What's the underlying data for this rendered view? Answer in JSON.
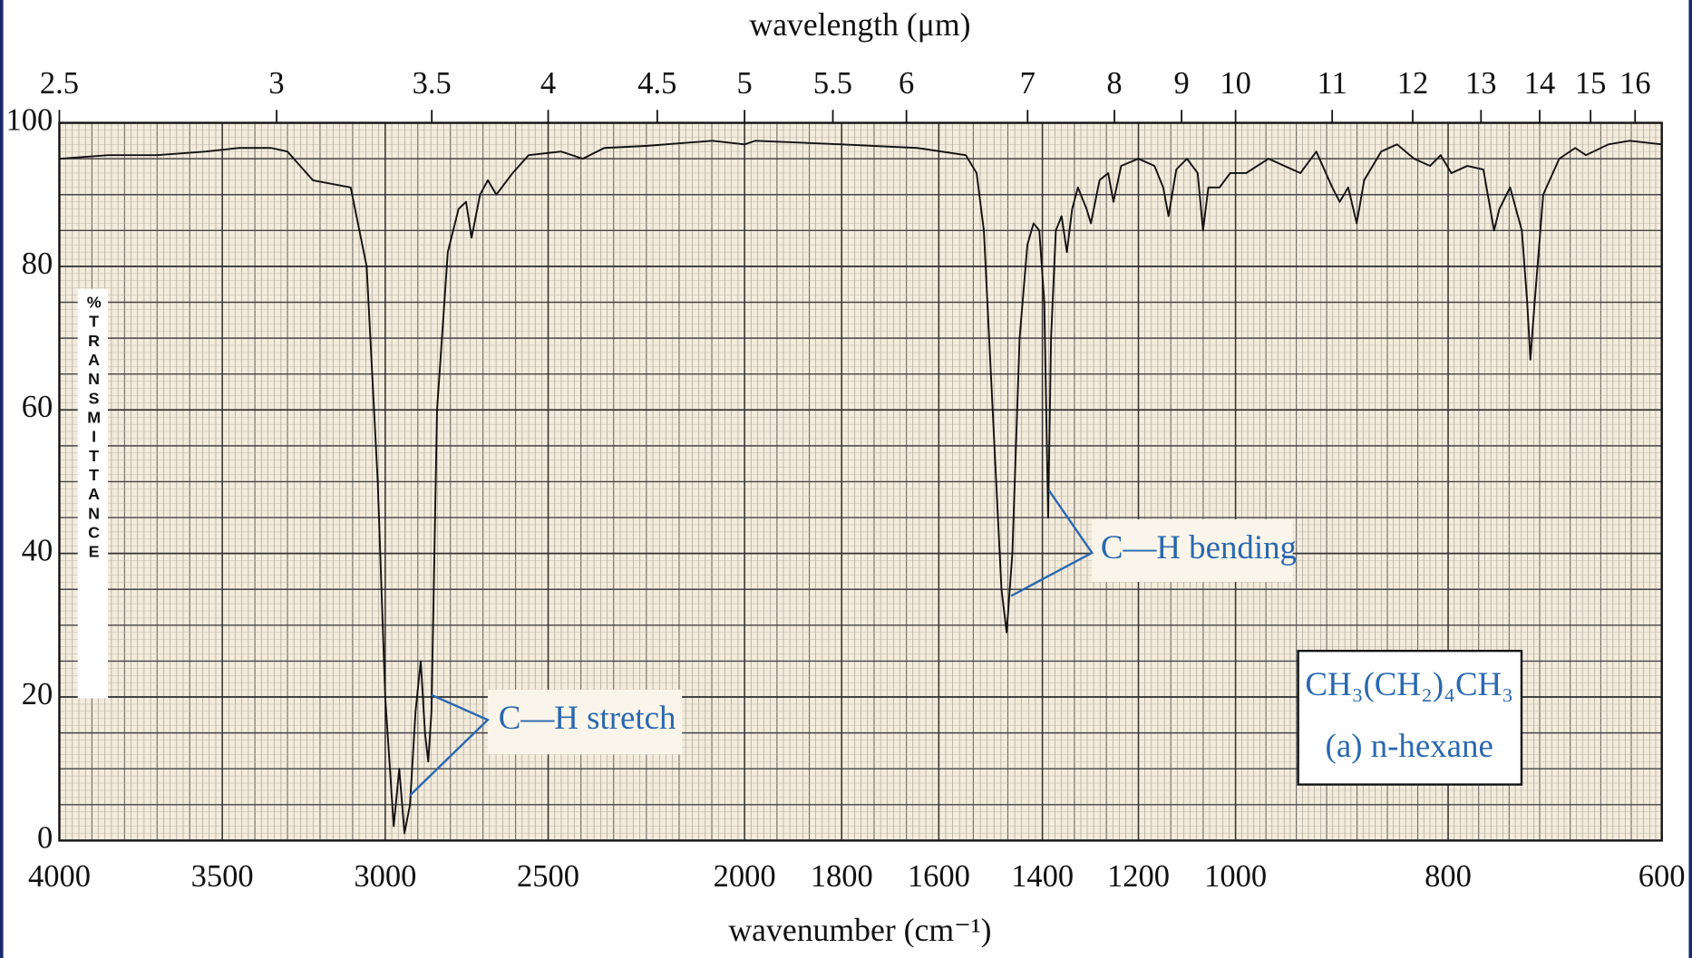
{
  "chart_data": {
    "type": "line",
    "x_label": "wavenumber (cm⁻¹)",
    "x2_label": "wavelength (μm)",
    "y_label": "%TRANSMITTANCE",
    "xlim": [
      4000,
      600
    ],
    "xticks": [
      4000,
      3500,
      3000,
      2500,
      2000,
      1800,
      1600,
      1400,
      1200,
      1000,
      800,
      600
    ],
    "x2ticks": [
      2.5,
      3,
      3.5,
      4,
      4.5,
      5,
      5.5,
      6,
      7,
      8,
      9,
      10,
      11,
      12,
      13,
      14,
      15,
      16
    ],
    "ylim": [
      0,
      100
    ],
    "yticks": [
      0,
      20,
      40,
      60,
      80,
      100
    ],
    "grid": true,
    "color": "#111111",
    "x": [
      4000,
      3850,
      3700,
      3550,
      3450,
      3350,
      3300,
      3222,
      3106,
      3057,
      3023,
      3000,
      2974,
      2957,
      2941,
      2924,
      2907,
      2891,
      2878,
      2868,
      2858,
      2841,
      2808,
      2775,
      2752,
      2735,
      2709,
      2685,
      2659,
      2609,
      2560,
      2467,
      2412,
      2357,
      2247,
      2082,
      2000,
      1978,
      1800,
      1644,
      1548,
      1527,
      1513,
      1496,
      1479,
      1469,
      1458,
      1444,
      1429,
      1417,
      1406,
      1396,
      1388,
      1382,
      1372,
      1360,
      1349,
      1338,
      1326,
      1308,
      1299,
      1281,
      1263,
      1252,
      1236,
      1200,
      1167,
      1149,
      1138,
      1122,
      1100,
      1078,
      1067,
      1056,
      1033,
      1011,
      990,
      969,
      939,
      924,
      909,
      902,
      894,
      886,
      879,
      863,
      848,
      832,
      817,
      807,
      797,
      782,
      767,
      757,
      752,
      742,
      731,
      726,
      723,
      719,
      711,
      696,
      681,
      671,
      650,
      630,
      600
    ],
    "values": [
      95,
      95.5,
      95.5,
      96,
      96.5,
      96.5,
      96,
      92,
      91,
      80,
      50,
      20,
      2,
      10,
      1,
      5,
      18,
      25,
      15,
      11,
      18,
      60,
      82,
      88,
      89,
      84,
      90,
      92,
      90,
      93,
      95.5,
      96,
      95,
      96.5,
      96.8,
      97.5,
      97,
      97.5,
      97,
      96.5,
      95.5,
      93,
      85,
      60,
      35,
      29,
      40,
      70,
      83,
      86,
      85,
      75,
      45,
      70,
      85,
      87,
      82,
      88,
      91,
      88,
      86,
      92,
      93,
      89,
      94,
      95,
      94,
      91,
      87,
      93.5,
      95,
      93,
      85,
      91,
      91,
      93,
      93,
      95,
      93,
      96,
      91,
      89,
      91,
      86,
      92,
      96,
      97,
      95,
      94,
      95.5,
      93,
      94,
      93.5,
      85,
      88,
      91,
      85,
      75,
      67,
      75,
      90,
      95,
      96.5,
      95.5,
      97,
      97.5,
      97
    ],
    "annotations": [
      {
        "text": "C—H stretch"
      },
      {
        "text": "C—H bending"
      },
      {
        "text": "CH₃(CH₂)₄CH₃"
      },
      {
        "text": "(a) n-hexane"
      }
    ]
  }
}
